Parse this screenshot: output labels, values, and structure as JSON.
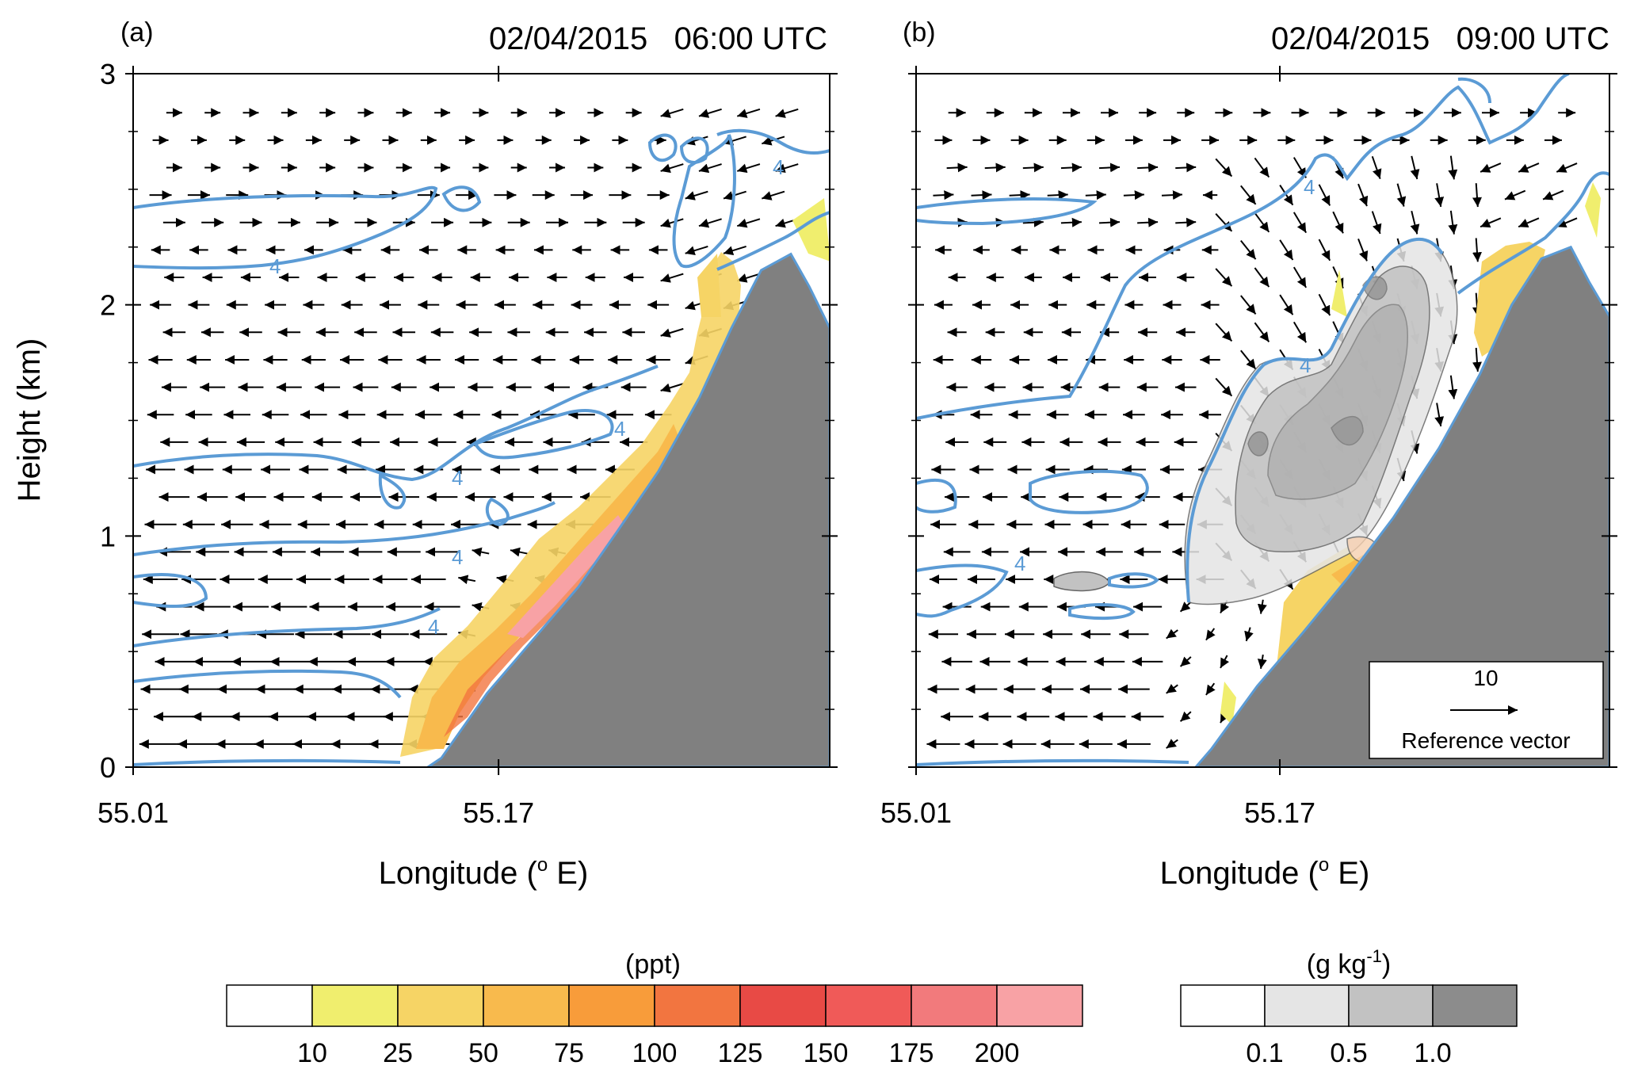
{
  "chart_data": [
    {
      "type": "vector-contour",
      "panel_label": "(a)",
      "title": "02/04/2015   06:00 UTC",
      "xlabel": "Longitude (",
      "xlabel_sup": "o",
      "xlabel_tail": " E)",
      "ylabel": "Height (km)",
      "xlim": [
        55.01,
        55.315
      ],
      "ylim": [
        0,
        3
      ],
      "xticks": [
        55.01,
        55.17
      ],
      "xtick_labels": [
        "55.01",
        "55.17"
      ],
      "yticks": [
        0,
        1,
        2,
        3
      ],
      "ytick_labels": [
        "0",
        "1",
        "2",
        "3"
      ],
      "contour_label": "4",
      "terrain_height_km": [
        [
          55.139,
          0
        ],
        [
          55.145,
          0.04
        ],
        [
          55.165,
          0.32
        ],
        [
          55.185,
          0.55
        ],
        [
          55.205,
          0.78
        ],
        [
          55.222,
          1.02
        ],
        [
          55.24,
          1.28
        ],
        [
          55.258,
          1.6
        ],
        [
          55.272,
          1.9
        ],
        [
          55.285,
          2.15
        ],
        [
          55.298,
          2.22
        ],
        [
          55.306,
          2.08
        ],
        [
          55.315,
          1.9
        ]
      ]
    },
    {
      "type": "vector-contour",
      "panel_label": "(b)",
      "title": "02/04/2015   09:00 UTC",
      "xlabel": "Longitude (",
      "xlabel_sup": "o",
      "xlabel_tail": " E)",
      "xlim": [
        55.01,
        55.315
      ],
      "ylim": [
        0,
        3
      ],
      "xticks": [
        55.01,
        55.17
      ],
      "xtick_labels": [
        "55.01",
        "55.17"
      ],
      "yticks": [
        0,
        1,
        2,
        3
      ],
      "contour_label": "4",
      "reference_vector": {
        "value": "10",
        "label": "Reference vector"
      },
      "terrain_height_km": [
        [
          55.133,
          0
        ],
        [
          55.14,
          0.08
        ],
        [
          55.16,
          0.35
        ],
        [
          55.18,
          0.58
        ],
        [
          55.2,
          0.82
        ],
        [
          55.22,
          1.08
        ],
        [
          55.24,
          1.38
        ],
        [
          55.258,
          1.7
        ],
        [
          55.272,
          2.0
        ],
        [
          55.285,
          2.2
        ],
        [
          55.298,
          2.25
        ],
        [
          55.306,
          2.1
        ],
        [
          55.315,
          1.95
        ]
      ]
    }
  ],
  "colorbars": [
    {
      "unit": "(ppt)",
      "colors": [
        "#ffffff",
        "#f0ee6e",
        "#f6d465",
        "#f8ba4d",
        "#f89c3a",
        "#f27540",
        "#e84a45",
        "#f05a58",
        "#f27a7c",
        "#f8a2a5"
      ],
      "tick_labels": [
        "10",
        "25",
        "50",
        "75",
        "100",
        "125",
        "150",
        "175",
        "200"
      ]
    },
    {
      "unit_main": "(g kg",
      "unit_sup": "-1",
      "unit_tail": ")",
      "colors": [
        "#ffffff",
        "#e5e5e5",
        "#c2c2c2",
        "#8c8c8c"
      ],
      "tick_labels": [
        "0.1",
        "0.5",
        "1.0"
      ]
    }
  ],
  "colors": {
    "contour": "#5b9bd5",
    "terrain": "#808080",
    "arrow": "#000000"
  }
}
